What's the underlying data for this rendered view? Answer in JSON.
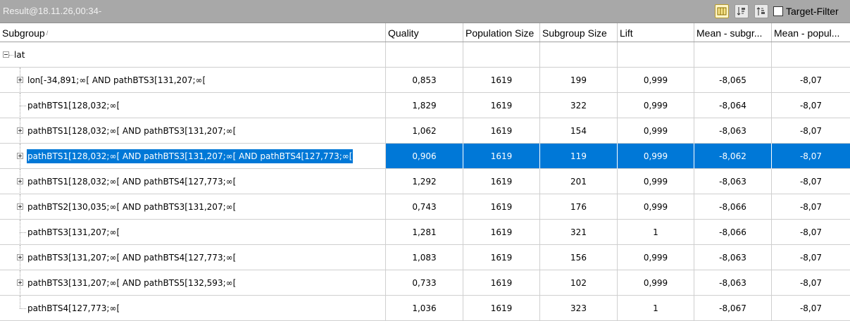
{
  "window": {
    "title": "Result@18.11.26,00:34-",
    "target_filter_label": "Target-Filter",
    "target_filter_checked": false,
    "toolbar_icons": [
      "columns-icon",
      "sort-desc-icon",
      "sort-asc-icon"
    ]
  },
  "columns": [
    {
      "label": "Subgroup",
      "sorted": true
    },
    {
      "label": "Quality"
    },
    {
      "label": "Population Size"
    },
    {
      "label": "Subgroup Size"
    },
    {
      "label": "Lift"
    },
    {
      "label": "Mean - subgr..."
    },
    {
      "label": "Mean - popul..."
    }
  ],
  "root": {
    "label": "lat",
    "expanded": true
  },
  "rows": [
    {
      "label": "lon[-34,891;∞[ AND pathBTS3[131,207;∞[",
      "expandable": true,
      "quality": "0,853",
      "population": "1619",
      "size": "199",
      "lift": "0,999",
      "mean_sub": "-8,065",
      "mean_pop": "-8,07"
    },
    {
      "label": "pathBTS1[128,032;∞[",
      "expandable": false,
      "quality": "1,829",
      "population": "1619",
      "size": "322",
      "lift": "0,999",
      "mean_sub": "-8,064",
      "mean_pop": "-8,07"
    },
    {
      "label": "pathBTS1[128,032;∞[ AND pathBTS3[131,207;∞[",
      "expandable": true,
      "quality": "1,062",
      "population": "1619",
      "size": "154",
      "lift": "0,999",
      "mean_sub": "-8,063",
      "mean_pop": "-8,07"
    },
    {
      "label": "pathBTS1[128,032;∞[ AND pathBTS3[131,207;∞[ AND pathBTS4[127,773;∞[",
      "expandable": true,
      "selected": true,
      "quality": "0,906",
      "population": "1619",
      "size": "119",
      "lift": "0,999",
      "mean_sub": "-8,062",
      "mean_pop": "-8,07"
    },
    {
      "label": "pathBTS1[128,032;∞[ AND pathBTS4[127,773;∞[",
      "expandable": true,
      "quality": "1,292",
      "population": "1619",
      "size": "201",
      "lift": "0,999",
      "mean_sub": "-8,063",
      "mean_pop": "-8,07"
    },
    {
      "label": "pathBTS2[130,035;∞[ AND pathBTS3[131,207;∞[",
      "expandable": true,
      "quality": "0,743",
      "population": "1619",
      "size": "176",
      "lift": "0,999",
      "mean_sub": "-8,066",
      "mean_pop": "-8,07"
    },
    {
      "label": "pathBTS3[131,207;∞[",
      "expandable": false,
      "quality": "1,281",
      "population": "1619",
      "size": "321",
      "lift": "1",
      "mean_sub": "-8,066",
      "mean_pop": "-8,07"
    },
    {
      "label": "pathBTS3[131,207;∞[ AND pathBTS4[127,773;∞[",
      "expandable": true,
      "quality": "1,083",
      "population": "1619",
      "size": "156",
      "lift": "0,999",
      "mean_sub": "-8,063",
      "mean_pop": "-8,07"
    },
    {
      "label": "pathBTS3[131,207;∞[ AND pathBTS5[132,593;∞[",
      "expandable": true,
      "quality": "0,733",
      "population": "1619",
      "size": "102",
      "lift": "0,999",
      "mean_sub": "-8,063",
      "mean_pop": "-8,07"
    },
    {
      "label": "pathBTS4[127,773;∞[",
      "expandable": false,
      "quality": "1,036",
      "population": "1619",
      "size": "323",
      "lift": "1",
      "mean_sub": "-8,067",
      "mean_pop": "-8,07"
    }
  ]
}
